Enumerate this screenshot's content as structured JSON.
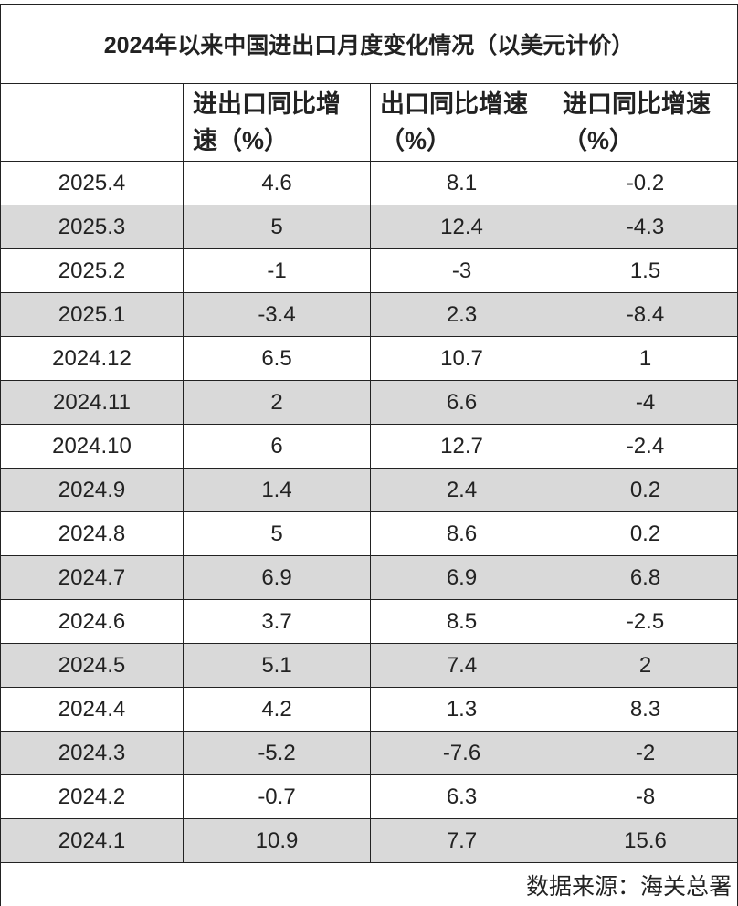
{
  "table": {
    "title": "2024年以来中国进出口月度变化情况（以美元计价）",
    "header": [
      "",
      "进出口同比增速（%）",
      "出口同比增速（%）",
      "进口同比增速（%）"
    ],
    "rows": [
      [
        "2025.4",
        4.6,
        8.1,
        -0.2
      ],
      [
        "2025.3",
        5,
        12.4,
        -4.3
      ],
      [
        "2025.2",
        -1,
        -3,
        1.5
      ],
      [
        "2025.1",
        -3.4,
        2.3,
        -8.4
      ],
      [
        "2024.12",
        6.5,
        10.7,
        1
      ],
      [
        "2024.11",
        2,
        6.6,
        -4
      ],
      [
        "2024.10",
        6,
        12.7,
        -2.4
      ],
      [
        "2024.9",
        1.4,
        2.4,
        0.2
      ],
      [
        "2024.8",
        5,
        8.6,
        0.2
      ],
      [
        "2024.7",
        6.9,
        6.9,
        6.8
      ],
      [
        "2024.6",
        3.7,
        8.5,
        -2.5
      ],
      [
        "2024.5",
        5.1,
        7.4,
        2
      ],
      [
        "2024.4",
        4.2,
        1.3,
        8.3
      ],
      [
        "2024.3",
        -5.2,
        -7.6,
        -2
      ],
      [
        "2024.2",
        -0.7,
        6.3,
        -8
      ],
      [
        "2024.1",
        10.9,
        7.7,
        15.6
      ]
    ],
    "source": "数据来源：海关总署"
  }
}
